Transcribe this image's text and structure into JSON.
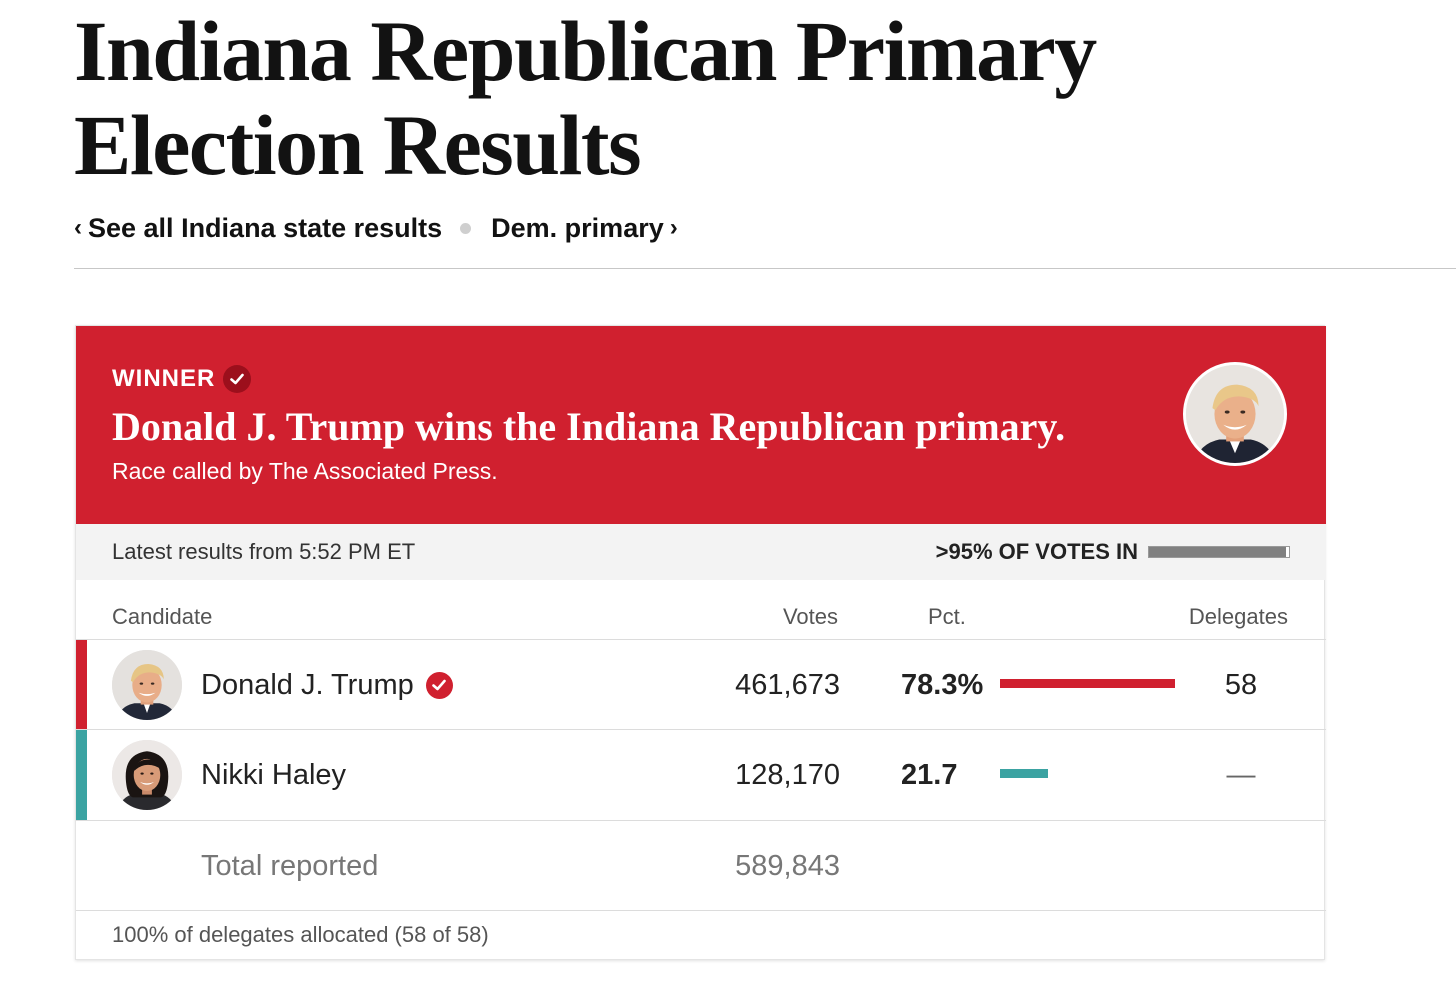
{
  "page": {
    "title": "Indiana Republican Primary Election Results"
  },
  "nav": {
    "back_chevron": "‹",
    "back_link": "See all Indiana state results",
    "other_link": "Dem. primary",
    "forward_chevron": "›"
  },
  "banner": {
    "winner_label": "WINNER",
    "headline": "Donald J. Trump wins the Indiana Republican primary.",
    "subhead": "Race called by The Associated Press.",
    "photo_icon": "trump-portrait-icon",
    "color": "#d0202f"
  },
  "status": {
    "latest": "Latest results from 5:52 PM ET",
    "votes_in": ">95% OF VOTES IN",
    "votes_in_fraction": 0.98
  },
  "table": {
    "headers": {
      "candidate": "Candidate",
      "votes": "Votes",
      "pct": "Pct.",
      "delegates": "Delegates"
    },
    "rows": [
      {
        "name": "Donald J. Trump",
        "votes": "461,673",
        "pct": "78.3%",
        "pct_value": 78.3,
        "delegates": "58",
        "winner": true,
        "color": "#d0202f",
        "avatar_icon": "trump-avatar-icon"
      },
      {
        "name": "Nikki Haley",
        "votes": "128,170",
        "pct": "21.7",
        "pct_value": 21.7,
        "delegates": "—",
        "winner": false,
        "color": "#3ba3a2",
        "avatar_icon": "haley-avatar-icon"
      }
    ],
    "total_label": "Total reported",
    "total_votes": "589,843"
  },
  "footer": {
    "note": "100% of delegates allocated (58 of 58)"
  }
}
